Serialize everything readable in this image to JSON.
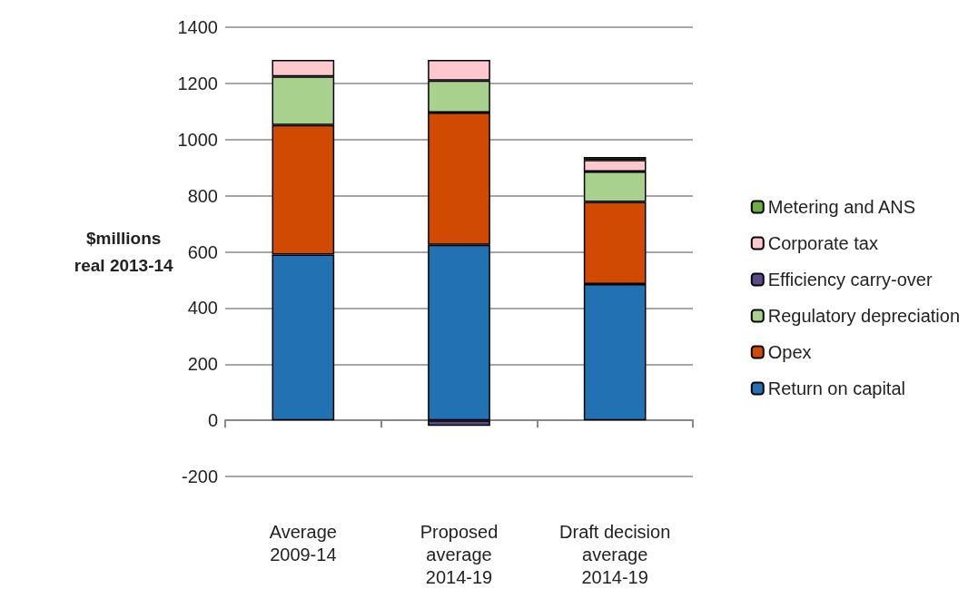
{
  "chart_data": {
    "type": "bar",
    "stacked": true,
    "ylabel": "$millions\nreal 2013-14",
    "categories": [
      "Average\n2009-14",
      "Proposed\naverage\n2014-19",
      "Draft decision\naverage\n2014-19"
    ],
    "series": [
      {
        "name": "Return on capital",
        "color": "#2271b3",
        "values": [
          590,
          625,
          485
        ]
      },
      {
        "name": "Opex",
        "color": "#d04a02",
        "values": [
          462,
          471,
          293
        ]
      },
      {
        "name": "Regulatory depreciation",
        "color": "#a9d18e",
        "values": [
          173,
          114,
          108
        ]
      },
      {
        "name": "Efficiency carry-over",
        "color": "#5b4a8b",
        "values": [
          null,
          -20,
          null
        ]
      },
      {
        "name": "Corporate tax",
        "color": "#ffc7ce",
        "values": [
          59,
          74,
          41
        ]
      },
      {
        "name": "Metering and ANS",
        "color": "#70ad47",
        "values": [
          null,
          null,
          11
        ]
      }
    ],
    "ylim": [
      -200,
      1400
    ],
    "yticks": [
      -200,
      0,
      200,
      400,
      600,
      800,
      1000,
      1200,
      1400
    ],
    "grid": "y",
    "legend": "right"
  }
}
